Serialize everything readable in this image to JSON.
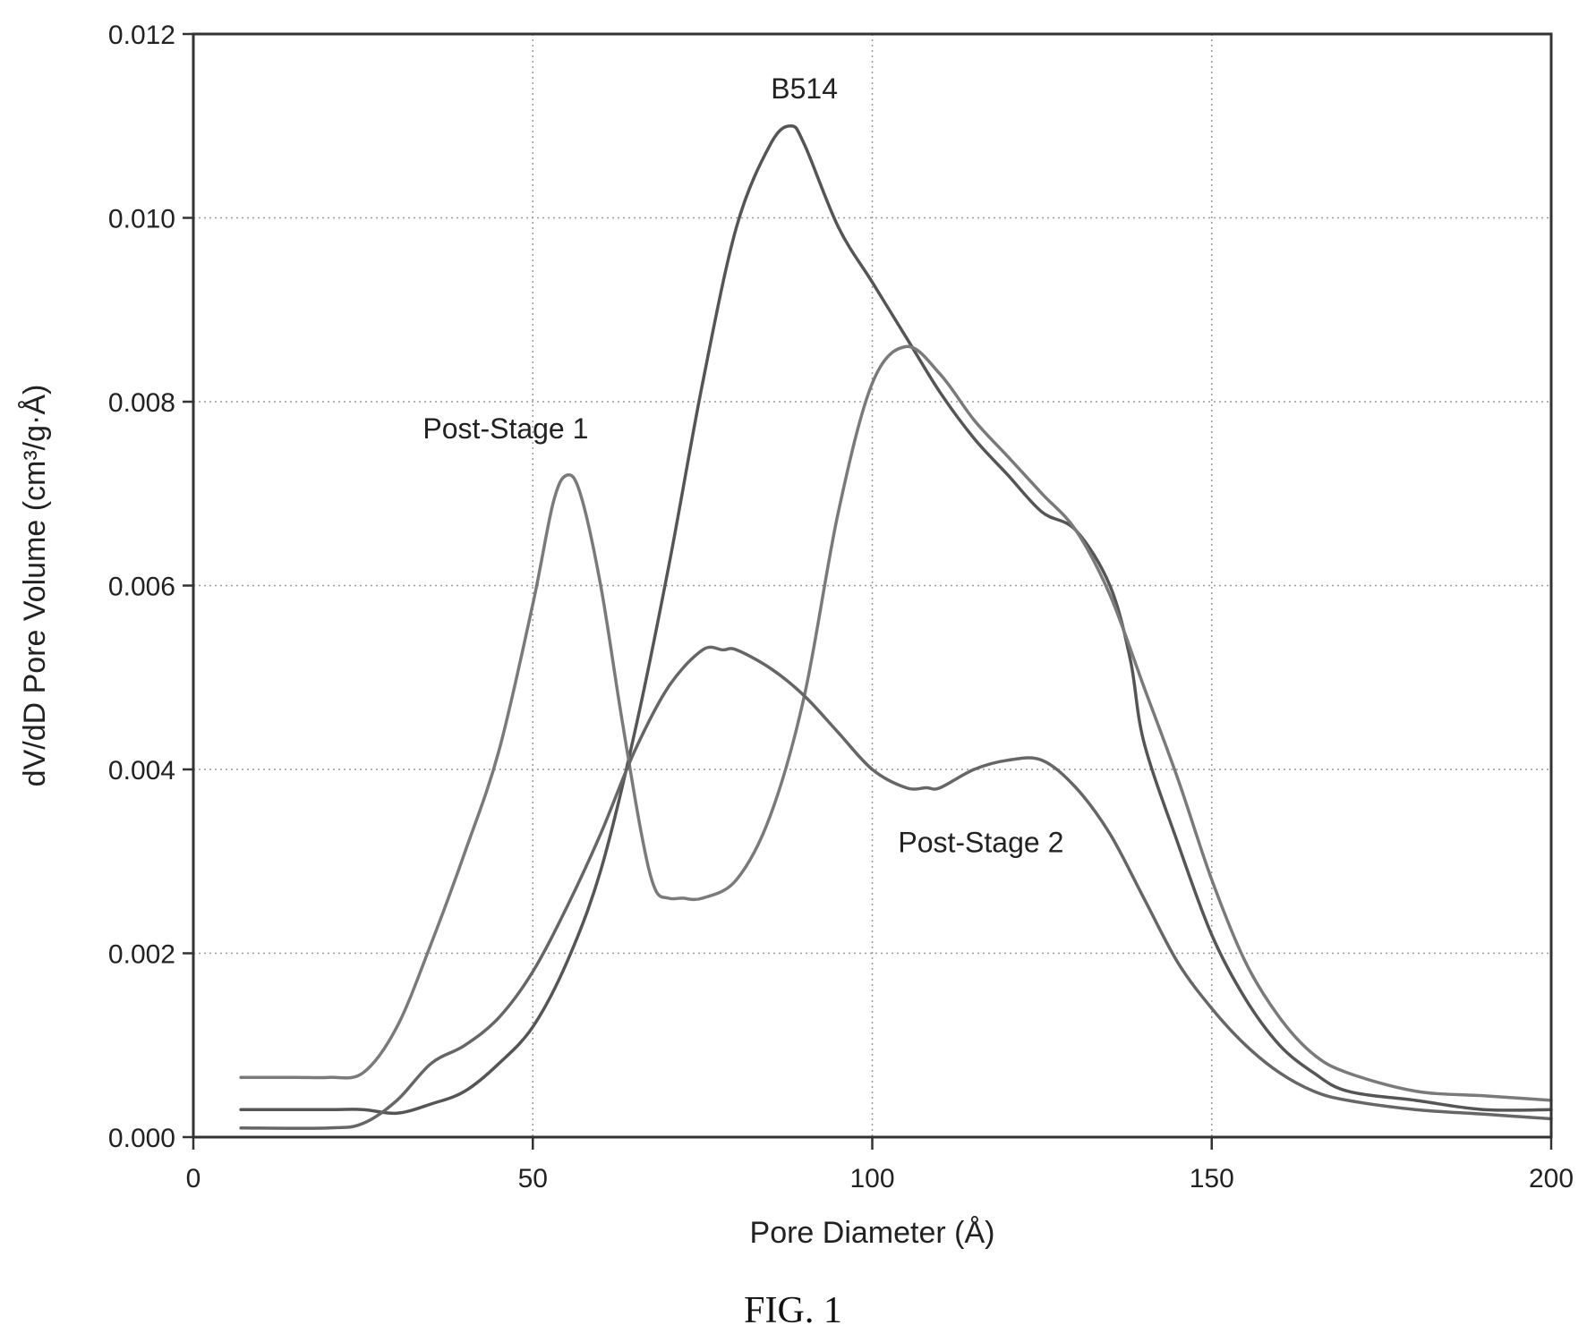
{
  "chart_data": {
    "type": "line",
    "title": "",
    "xlabel": "Pore Diameter (Å)",
    "ylabel": "dV/dD Pore Volume (cm³/g·Å)",
    "xlim": [
      0,
      200
    ],
    "ylim": [
      0,
      0.012
    ],
    "x_ticks": [
      "0",
      "50",
      "100",
      "150",
      "200"
    ],
    "y_ticks": [
      "0.000",
      "0.002",
      "0.004",
      "0.006",
      "0.008",
      "0.010",
      "0.012"
    ],
    "grid": true,
    "legend": "none",
    "series": [
      {
        "name": "B514",
        "color": "#555555",
        "x": [
          7,
          20,
          25,
          30,
          35,
          40,
          45,
          50,
          55,
          60,
          65,
          70,
          75,
          80,
          85,
          88,
          90,
          95,
          100,
          105,
          110,
          115,
          120,
          125,
          130,
          135,
          138,
          140,
          145,
          150,
          155,
          160,
          165,
          170,
          180,
          190,
          200
        ],
        "y": [
          0.0003,
          0.0003,
          0.0003,
          0.00026,
          0.00036,
          0.0005,
          0.0008,
          0.0012,
          0.0019,
          0.0029,
          0.0044,
          0.0062,
          0.0082,
          0.0099,
          0.0108,
          0.011,
          0.0108,
          0.0099,
          0.0093,
          0.0087,
          0.0081,
          0.0076,
          0.0072,
          0.0068,
          0.0066,
          0.006,
          0.0052,
          0.0043,
          0.0032,
          0.0022,
          0.0015,
          0.001,
          0.0007,
          0.0005,
          0.0004,
          0.0003,
          0.0003
        ]
      },
      {
        "name": "Post-Stage 1",
        "color": "#7a7a7a",
        "x": [
          7,
          15,
          20,
          25,
          30,
          35,
          40,
          45,
          50,
          53,
          55,
          57,
          60,
          63,
          66,
          68,
          70,
          72,
          75,
          80,
          85,
          90,
          95,
          100,
          105,
          110,
          115,
          120,
          125,
          130,
          135,
          140,
          145,
          150,
          155,
          160,
          165,
          170,
          180,
          190,
          200
        ],
        "y": [
          0.00065,
          0.00065,
          0.00065,
          0.0007,
          0.0012,
          0.0021,
          0.0031,
          0.0042,
          0.0058,
          0.0069,
          0.0072,
          0.007,
          0.006,
          0.0046,
          0.0033,
          0.0027,
          0.0026,
          0.0026,
          0.0026,
          0.0028,
          0.0035,
          0.0048,
          0.0068,
          0.0082,
          0.0086,
          0.0083,
          0.0078,
          0.0074,
          0.007,
          0.0066,
          0.0059,
          0.0049,
          0.0039,
          0.0028,
          0.0019,
          0.0013,
          0.0009,
          0.0007,
          0.0005,
          0.00045,
          0.0004
        ]
      },
      {
        "name": "Post-Stage 2",
        "color": "#666666",
        "x": [
          7,
          20,
          25,
          30,
          35,
          40,
          45,
          50,
          55,
          60,
          65,
          70,
          75,
          78,
          80,
          85,
          90,
          95,
          100,
          105,
          108,
          110,
          115,
          120,
          125,
          130,
          135,
          140,
          145,
          150,
          155,
          160,
          165,
          170,
          180,
          190,
          200
        ],
        "y": [
          0.0001,
          0.0001,
          0.00015,
          0.0004,
          0.0008,
          0.001,
          0.0013,
          0.0018,
          0.0025,
          0.0033,
          0.0042,
          0.0049,
          0.0053,
          0.0053,
          0.0053,
          0.0051,
          0.0048,
          0.0044,
          0.004,
          0.0038,
          0.0038,
          0.0038,
          0.004,
          0.0041,
          0.0041,
          0.0038,
          0.0033,
          0.0026,
          0.0019,
          0.0014,
          0.001,
          0.0007,
          0.0005,
          0.0004,
          0.0003,
          0.00025,
          0.0002
        ]
      }
    ],
    "annotations": [
      {
        "text": "B514",
        "x": 90,
        "y": 0.0113
      },
      {
        "text": "Post-Stage 1",
        "x": 46,
        "y": 0.0076
      },
      {
        "text": "Post-Stage 2",
        "x": 116,
        "y": 0.0031
      }
    ]
  },
  "figure": {
    "caption": "FIG. 1"
  }
}
